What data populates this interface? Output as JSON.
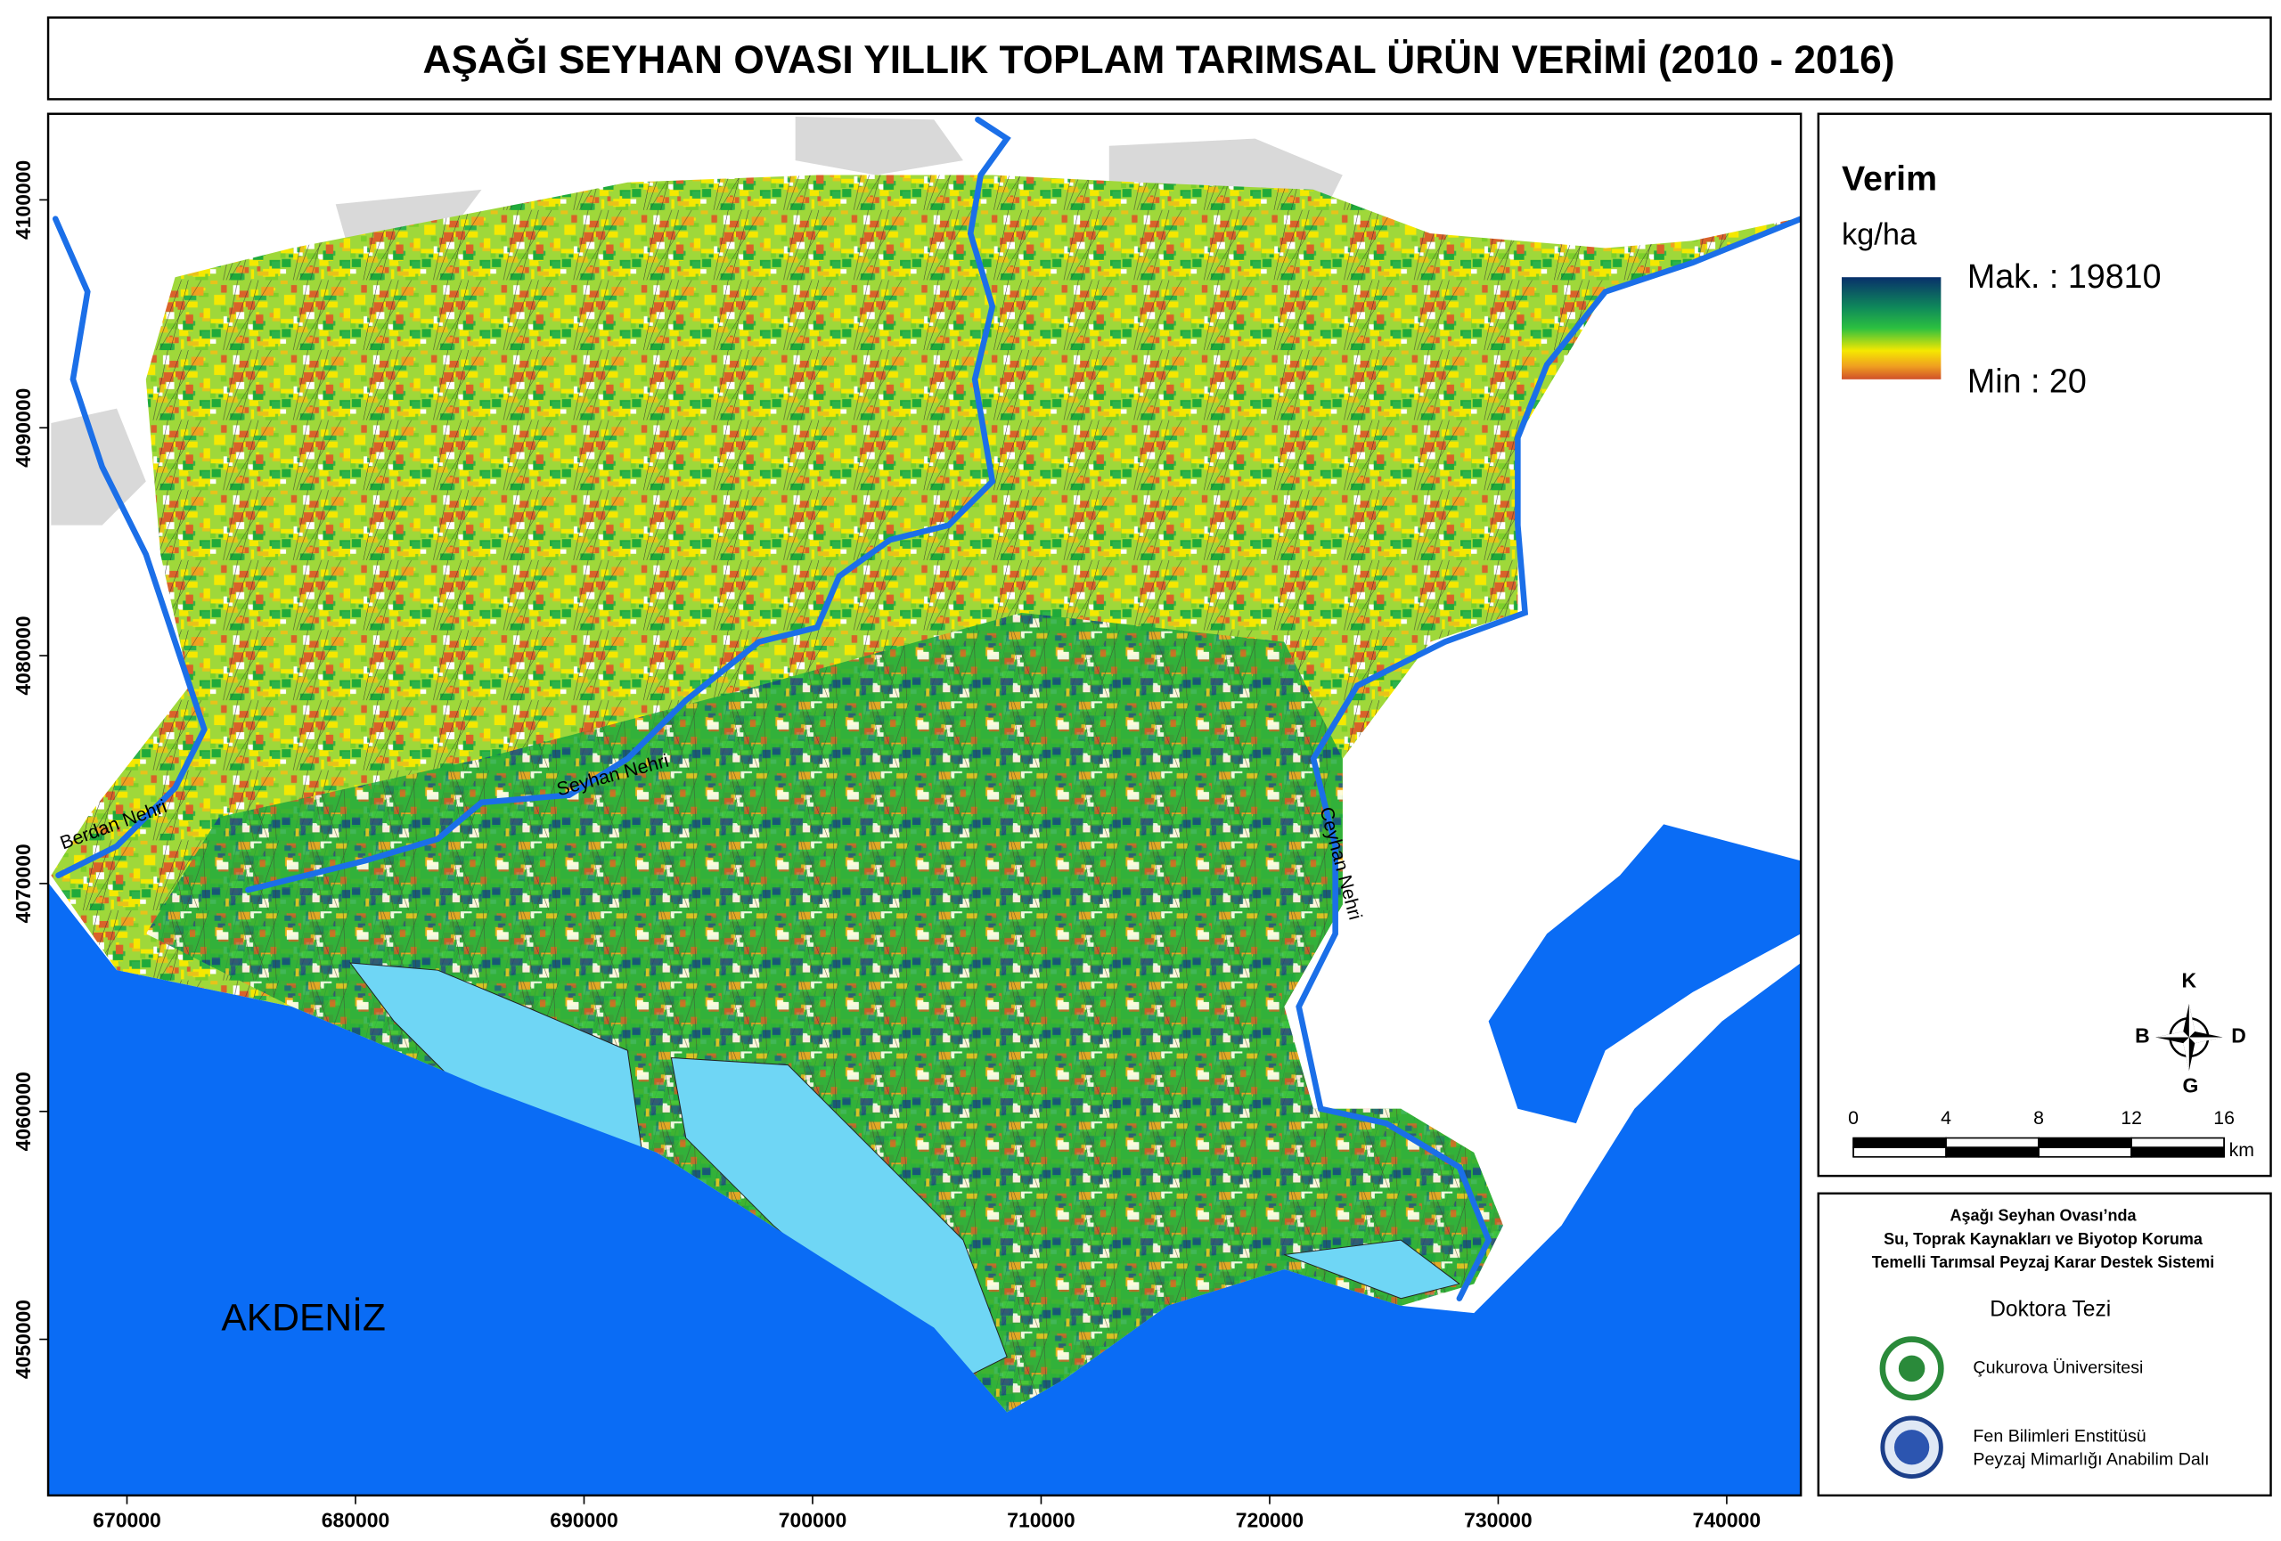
{
  "title": "AŞAĞI SEYHAN OVASI YILLIK TOPLAM TARIMSAL ÜRÜN VERİMİ (2010 - 2016)",
  "map": {
    "xlim": [
      666552,
      743244
    ],
    "ylim": [
      4043150,
      4103777
    ],
    "xticks": [
      670000,
      680000,
      690000,
      700000,
      710000,
      720000,
      730000,
      740000
    ],
    "yticks": [
      4050000,
      4060000,
      4070000,
      4080000,
      4090000,
      4100000
    ],
    "sea_label": "AKDENİZ",
    "berdan": "Berdan Nehri",
    "seyhan": "Seyhan Nehri",
    "ceyhan": "Ceyhan Nehri"
  },
  "legend": {
    "title": "Verim",
    "unit": "kg/ha",
    "max_label": "Mak. : 19810",
    "min_label": "Min : 20"
  },
  "compass": {
    "north": "K",
    "west": "B",
    "east": "D",
    "south": "G"
  },
  "scale_bar": {
    "ticks": [
      0,
      4,
      8,
      12,
      16
    ],
    "unit": "km"
  },
  "info": {
    "line1": "Aşağı Seyhan Ovası’nda",
    "line2": "Su, Toprak Kaynakları ve Biyotop Koruma",
    "line3": "Temelli Tarımsal Peyzaj Karar Destek Sistemi",
    "thesis": "Doktora Tezi",
    "university": "Çukurova Üniversitesi",
    "institute": "Fen Bilimleri Enstitüsü",
    "department": "Peyzaj Mimarlığı Anabilim Dalı"
  }
}
